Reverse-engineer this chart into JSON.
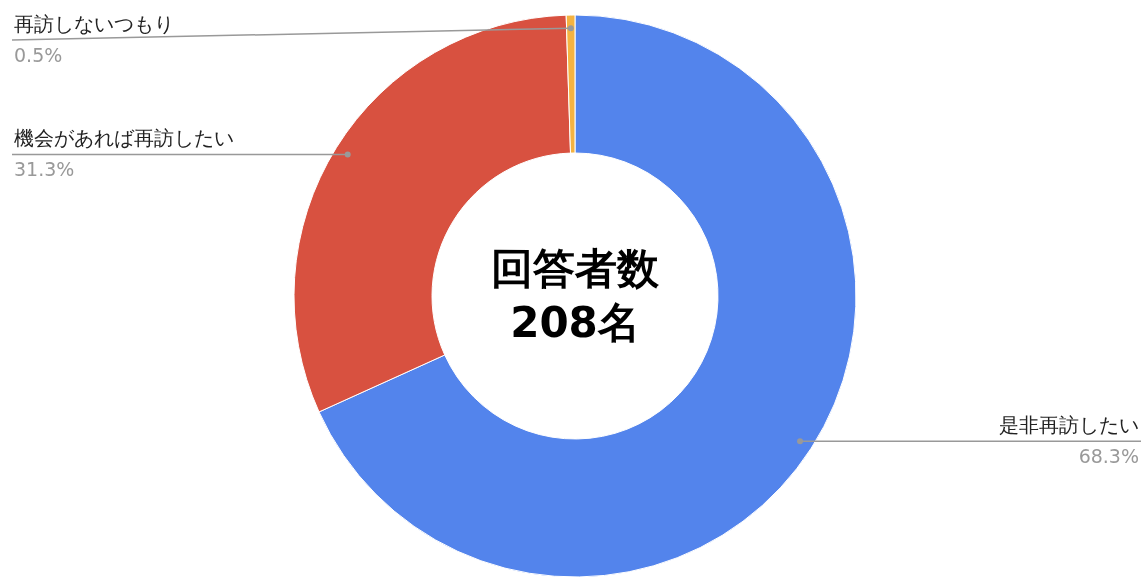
{
  "chart_data": {
    "type": "donut",
    "categories": [
      "是非再訪したい",
      "機会があれば再訪したい",
      "再訪しないつもり"
    ],
    "values": [
      68.3,
      31.3,
      0.5
    ],
    "colors": [
      "#5384ec",
      "#d85140",
      "#f4b342"
    ],
    "value_labels": [
      "68.3%",
      "31.3%",
      "0.5%"
    ],
    "annotations": [
      "回答者数\n208名"
    ]
  }
}
